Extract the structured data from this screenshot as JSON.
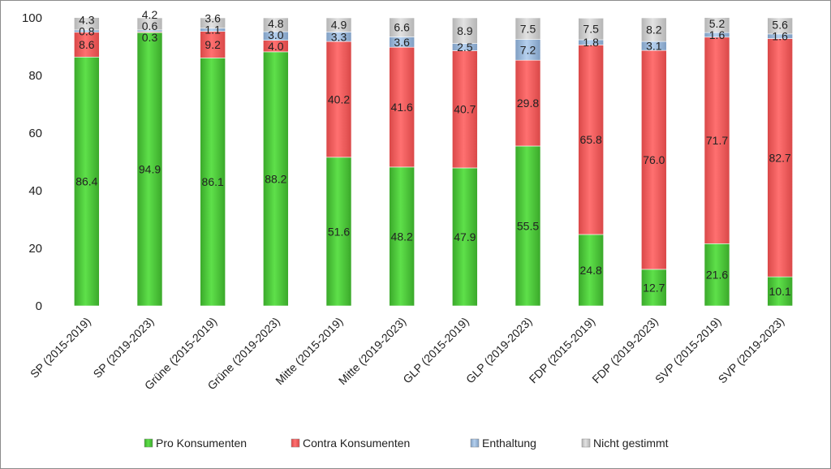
{
  "chart_data": {
    "type": "bar",
    "stacked": true,
    "categories": [
      "SP (2015-2019)",
      "SP (2019-2023)",
      "Grüne (2015-2019)",
      "Grüne (2019-2023)",
      "Mitte (2015-2019)",
      "Mitte (2019-2023)",
      "GLP (2015-2019)",
      "GLP (2019-2023)",
      "FDP (2015-2019)",
      "FDP (2019-2023)",
      "SVP (2015-2019)",
      "SVP (2019-2023)"
    ],
    "series": [
      {
        "name": "Pro Konsumenten",
        "color": "#4fd03a",
        "values": [
          86.4,
          94.9,
          86.1,
          88.2,
          51.6,
          48.2,
          47.9,
          55.5,
          24.8,
          12.7,
          21.6,
          10.1
        ],
        "labels": [
          "86.4",
          "94.9",
          "86.1",
          "88.2",
          "51.6",
          "48.2",
          "47.9",
          "55.5",
          "24.8",
          "12.7",
          "21.6",
          "10.1"
        ]
      },
      {
        "name": "Contra Konsumenten",
        "color": "#f26161",
        "values": [
          8.6,
          0.3,
          9.2,
          4.0,
          40.2,
          41.6,
          40.7,
          29.8,
          65.8,
          76.0,
          71.7,
          82.7
        ],
        "labels": [
          "8.6",
          "0.3",
          "9.2",
          "4.0",
          "40.2",
          "41.6",
          "40.7",
          "29.8",
          "65.8",
          "76.0",
          "71.7",
          "82.7"
        ]
      },
      {
        "name": "Enthaltung",
        "color": "#9fbfe0",
        "values": [
          0.8,
          0.6,
          1.1,
          3.0,
          3.3,
          3.6,
          2.5,
          7.2,
          1.8,
          3.1,
          1.6,
          1.6
        ],
        "labels": [
          "0.8",
          "0.6",
          "1.1",
          "3.0",
          "3.3",
          "3.6",
          "2.5",
          "7.2",
          "1.8",
          "3.1",
          "1.6",
          "1.6"
        ]
      },
      {
        "name": "Nicht gestimmt",
        "color": "#d0d0d0",
        "values": [
          4.3,
          4.2,
          3.6,
          4.8,
          4.9,
          6.6,
          8.9,
          7.5,
          7.5,
          8.2,
          5.2,
          5.6
        ],
        "labels": [
          "4.3",
          "4.2",
          "3.6",
          "4.8",
          "4.9",
          "6.6",
          "8.9",
          "7.5",
          "7.5",
          "8.2",
          "5.2",
          "5.6"
        ]
      }
    ],
    "ylim": [
      0,
      100
    ],
    "yticks": [
      "0",
      "20",
      "40",
      "60",
      "80",
      "100"
    ],
    "grid": false,
    "legend_position": "bottom"
  }
}
